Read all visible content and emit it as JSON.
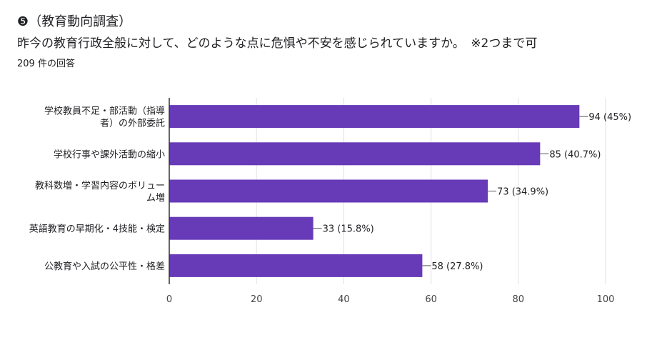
{
  "header": {
    "title": "❺（教育動向調査）",
    "question": "昨今の教育行政全般に対して、どのような点に危惧や不安を感じられていますか。　※2つまで可",
    "response_count": "209 件の回答"
  },
  "colors": {
    "bar": "#673ab7",
    "grid": "#e0e0e0",
    "axis": "#333333"
  },
  "chart_data": {
    "type": "bar",
    "orientation": "horizontal",
    "title": "",
    "xlabel": "",
    "ylabel": "",
    "xlim": [
      0,
      100
    ],
    "x_ticks": [
      0,
      20,
      40,
      60,
      80,
      100
    ],
    "grid": true,
    "categories": [
      [
        "学校教員不足・部活動（指導",
        "者）の外部委託"
      ],
      [
        "学校行事や課外活動の縮小"
      ],
      [
        "教科数増・学習内容のボリュー",
        "ム増"
      ],
      [
        "英語教育の早期化・4技能・検定"
      ],
      [
        "公教育や入試の公平性・格差"
      ]
    ],
    "values": [
      94,
      85,
      73,
      33,
      58
    ],
    "data_labels": [
      "94 (45%)",
      "85 (40.7%)",
      "73 (34.9%)",
      "33 (15.8%)",
      "58 (27.8%)"
    ]
  }
}
